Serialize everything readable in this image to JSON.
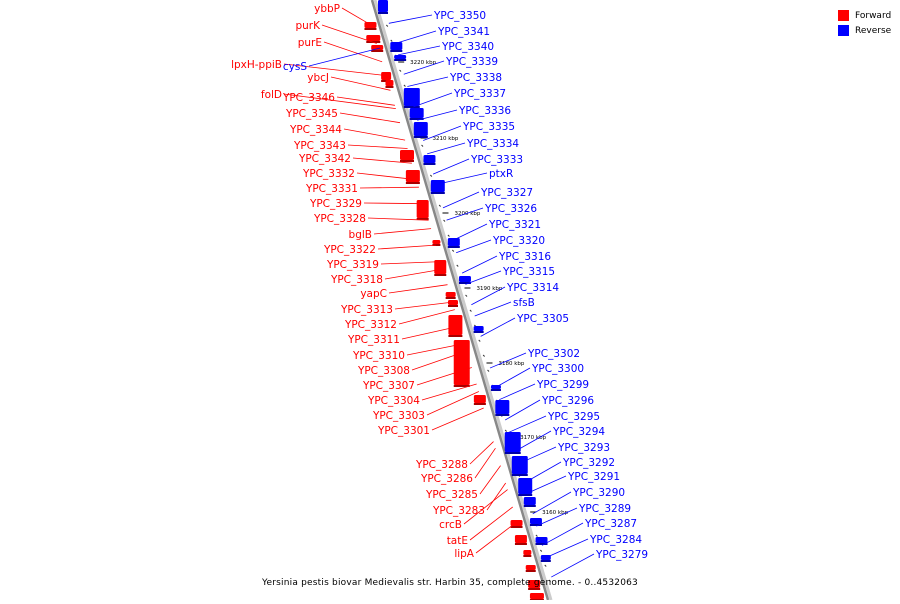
{
  "caption": "Yersinia pestis biovar Medievalis str. Harbin 35, complete genome. - 0..4532063",
  "legend": [
    {
      "label": "Forward",
      "color": "#ff0000"
    },
    {
      "label": "Reverse",
      "color": "#0000ff"
    }
  ],
  "colors": {
    "forward": "#ff0000",
    "reverse": "#0000ff",
    "axis": "#888888"
  },
  "scale_labels": [
    "3220 kbp",
    "3210 kbp",
    "3200 kbp",
    "3190 kbp",
    "3180 kbp",
    "3170 kbp",
    "3160 kbp"
  ],
  "forward_genes": [
    "ybbP",
    "purK",
    "purE",
    "lpxH-ppiB",
    "ybcJ",
    "folD",
    "YPC_3346",
    "YPC_3345",
    "YPC_3344",
    "YPC_3343",
    "YPC_3342",
    "YPC_3332",
    "YPC_3331",
    "YPC_3329",
    "YPC_3328",
    "bglB",
    "YPC_3322",
    "YPC_3319",
    "YPC_3318",
    "yapC",
    "YPC_3313",
    "YPC_3312",
    "YPC_3311",
    "YPC_3310",
    "YPC_3308",
    "YPC_3307",
    "YPC_3304",
    "YPC_3303",
    "YPC_3301",
    "YPC_3288",
    "YPC_3286",
    "YPC_3285",
    "YPC_3283",
    "crcB",
    "tatE",
    "lipA"
  ],
  "reverse_genes_left": [
    "cysS"
  ],
  "reverse_genes": [
    "YPC_3350",
    "YPC_3341",
    "YPC_3340",
    "YPC_3339",
    "YPC_3338",
    "YPC_3337",
    "YPC_3336",
    "YPC_3335",
    "YPC_3334",
    "YPC_3333",
    "ptxR",
    "YPC_3327",
    "YPC_3326",
    "YPC_3321",
    "YPC_3320",
    "YPC_3316",
    "YPC_3315",
    "YPC_3314",
    "sfsB",
    "YPC_3305",
    "YPC_3302",
    "YPC_3300",
    "YPC_3299",
    "YPC_3296",
    "YPC_3295",
    "YPC_3294",
    "YPC_3293",
    "YPC_3292",
    "YPC_3291",
    "YPC_3290",
    "YPC_3289",
    "YPC_3287",
    "YPC_3284",
    "YPC_3279"
  ]
}
